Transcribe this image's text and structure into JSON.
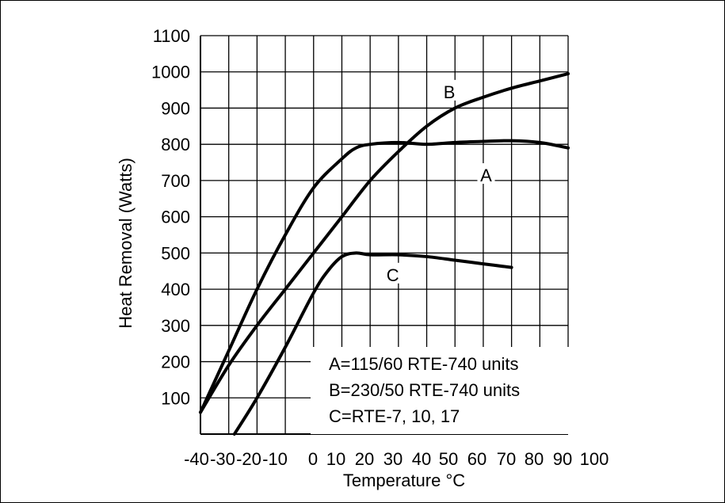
{
  "chart_data": {
    "type": "line",
    "title": "",
    "xlabel": "Temperature °C",
    "ylabel": "Heat Removal (Watts)",
    "xlim": [
      -40,
      100
    ],
    "ylim": [
      0,
      1100
    ],
    "grid": true,
    "x_ticks": [
      "-40",
      "-30",
      "-20",
      "-10",
      "0",
      "10",
      "20",
      "30",
      "40",
      "50",
      "60",
      "70",
      "80",
      "90",
      "100"
    ],
    "y_ticks": [
      "100",
      "200",
      "300",
      "400",
      "500",
      "600",
      "700",
      "800",
      "900",
      "1000",
      "1100"
    ],
    "series": [
      {
        "name": "A",
        "x": [
          -40,
          -30,
          -20,
          -10,
          0,
          10,
          15,
          20,
          30,
          40,
          50,
          60,
          70,
          80,
          90
        ],
        "y": [
          60,
          230,
          400,
          550,
          680,
          760,
          790,
          800,
          805,
          800,
          805,
          808,
          810,
          805,
          790
        ]
      },
      {
        "name": "B",
        "x": [
          -40,
          -30,
          -20,
          -10,
          0,
          10,
          20,
          30,
          40,
          50,
          60,
          70,
          80,
          90
        ],
        "y": [
          60,
          190,
          300,
          400,
          500,
          600,
          700,
          780,
          850,
          900,
          930,
          955,
          975,
          995
        ]
      },
      {
        "name": "C",
        "x": [
          -28,
          -20,
          -10,
          0,
          5,
          10,
          15,
          20,
          30,
          40,
          50,
          60,
          70
        ],
        "y": [
          0,
          100,
          240,
          390,
          450,
          490,
          500,
          495,
          495,
          490,
          480,
          470,
          460
        ]
      }
    ],
    "curve_labels": [
      {
        "text": "A",
        "x": 61,
        "y": 715
      },
      {
        "text": "B",
        "x": 48,
        "y": 945
      },
      {
        "text": "C",
        "x": 28,
        "y": 440
      }
    ],
    "annotations": [
      "A=115/60 RTE-740 units",
      "B=230/50 RTE-740 units",
      "C=RTE-7, 10, 17"
    ]
  }
}
